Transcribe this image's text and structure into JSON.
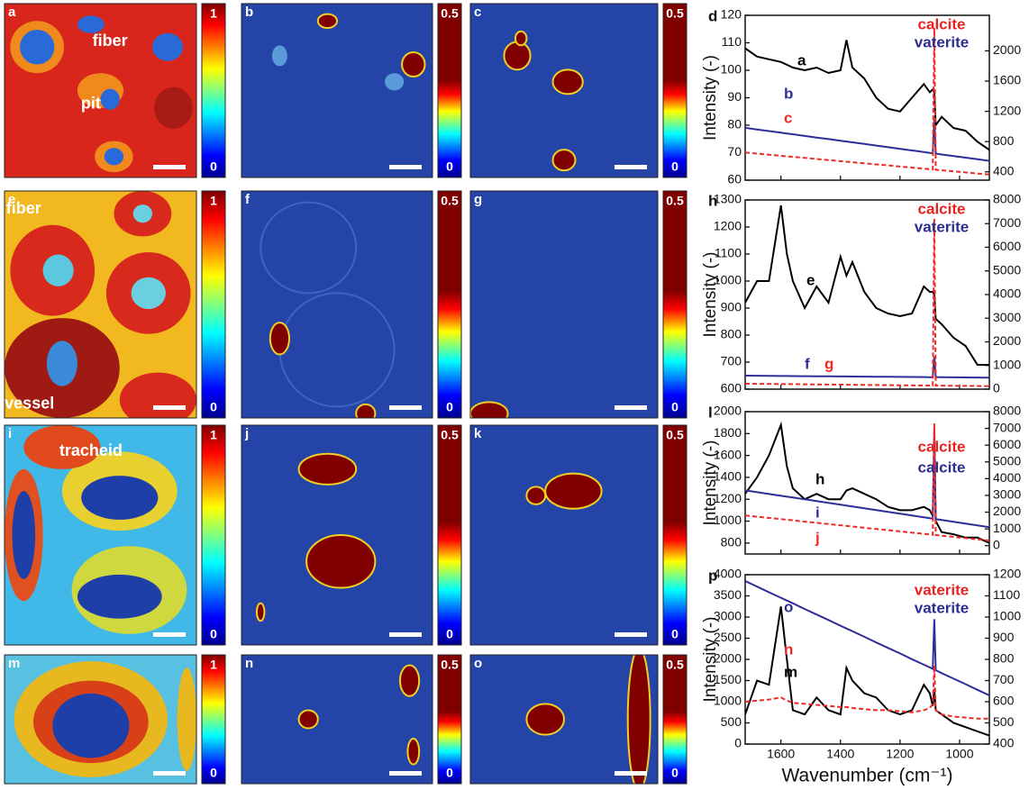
{
  "panels": [
    {
      "label": "a",
      "colorbar": {
        "max": 1,
        "min": 0
      },
      "annotations": [
        "fiber",
        "pit"
      ]
    },
    {
      "label": "b",
      "colorbar": {
        "max": 0.5,
        "min": 0
      },
      "annotations": []
    },
    {
      "label": "c",
      "colorbar": {
        "max": 0.5,
        "min": 0
      },
      "annotations": []
    },
    {
      "label": "e",
      "colorbar": {
        "max": 1,
        "min": 0
      },
      "annotations": [
        "fiber",
        "vessel"
      ]
    },
    {
      "label": "f",
      "colorbar": {
        "max": 0.5,
        "min": 0
      },
      "annotations": []
    },
    {
      "label": "g",
      "colorbar": {
        "max": 0.5,
        "min": 0
      },
      "annotations": []
    },
    {
      "label": "i",
      "colorbar": {
        "max": 1,
        "min": 0
      },
      "annotations": [
        "tracheid"
      ]
    },
    {
      "label": "j",
      "colorbar": {
        "max": 0.5,
        "min": 0
      },
      "annotations": []
    },
    {
      "label": "k",
      "colorbar": {
        "max": 0.5,
        "min": 0
      },
      "annotations": []
    },
    {
      "label": "m",
      "colorbar": {
        "max": 1,
        "min": 0
      },
      "annotations": []
    },
    {
      "label": "n",
      "colorbar": {
        "max": 0.5,
        "min": 0
      },
      "annotations": []
    },
    {
      "label": "o",
      "colorbar": {
        "max": 0.5,
        "min": 0
      },
      "annotations": []
    }
  ],
  "chart_data": [
    {
      "type": "line",
      "panel": "d",
      "ylabel": "Intensity (-)",
      "x": [
        1720,
        1680,
        1640,
        1600,
        1580,
        1560,
        1520,
        1480,
        1440,
        1400,
        1380,
        1360,
        1320,
        1280,
        1240,
        1200,
        1160,
        1120,
        1100,
        1090,
        1085,
        1080,
        1060,
        1020,
        980,
        940,
        900
      ],
      "xlim": [
        1720,
        900
      ],
      "xticks": [
        1600,
        1400,
        1200,
        1000
      ],
      "ylim": [
        60,
        120
      ],
      "yticks": [
        60,
        70,
        80,
        90,
        100,
        110,
        120
      ],
      "y2lim": [
        290,
        2470
      ],
      "y2ticks": [
        400,
        800,
        1200,
        1600,
        2000
      ],
      "annotations": [
        {
          "text": "calcite",
          "color": "#e8231f"
        },
        {
          "text": "vaterite",
          "color": "#2b2d92"
        }
      ],
      "series": [
        {
          "name": "a",
          "color": "#000000",
          "values": [
            108,
            105,
            104,
            103,
            102,
            101,
            100,
            101,
            99,
            100,
            111,
            101,
            97,
            90,
            86,
            85,
            90,
            95,
            92,
            93,
            92,
            80,
            83,
            79,
            78,
            74,
            71
          ]
        },
        {
          "name": "b",
          "color": "#2e2e9a",
          "axis": "y2",
          "values": [
            982,
            961,
            939,
            918,
            907,
            897,
            875,
            854,
            833,
            811,
            801,
            790,
            769,
            747,
            726,
            705,
            683,
            662,
            651,
            646,
            1090,
            641,
            630,
            609,
            588,
            566,
            545
          ]
        },
        {
          "name": "c",
          "color": "#ee2b24",
          "axis": "y2",
          "dashed": true,
          "values": [
            655,
            641,
            627,
            612,
            605,
            598,
            584,
            570,
            556,
            541,
            534,
            527,
            513,
            499,
            485,
            470,
            456,
            442,
            435,
            432,
            2290,
            428,
            421,
            407,
            392,
            378,
            364
          ]
        }
      ]
    },
    {
      "type": "line",
      "panel": "h",
      "ylabel": "Intensity (-)",
      "x": [
        1720,
        1680,
        1640,
        1600,
        1580,
        1560,
        1520,
        1480,
        1440,
        1400,
        1380,
        1360,
        1320,
        1280,
        1240,
        1200,
        1160,
        1120,
        1100,
        1090,
        1085,
        1080,
        1060,
        1020,
        980,
        940,
        900
      ],
      "xlim": [
        1720,
        900
      ],
      "xticks": [
        1600,
        1400,
        1200,
        1000
      ],
      "ylim": [
        600,
        1300
      ],
      "yticks": [
        600,
        700,
        800,
        900,
        1000,
        1100,
        1200,
        1300
      ],
      "y2lim": [
        0,
        8000
      ],
      "y2ticks": [
        0,
        1000,
        2000,
        3000,
        4000,
        5000,
        6000,
        7000,
        8000
      ],
      "annotations": [
        {
          "text": "calcite",
          "color": "#e8231f"
        },
        {
          "text": "vaterite",
          "color": "#2b2d92"
        }
      ],
      "series": [
        {
          "name": "e",
          "color": "#000000",
          "values": [
            920,
            1000,
            1000,
            1280,
            1100,
            1000,
            900,
            980,
            920,
            1090,
            1020,
            1070,
            960,
            900,
            880,
            870,
            880,
            980,
            960,
            960,
            950,
            860,
            840,
            790,
            760,
            690,
            690
          ]
        },
        {
          "name": "f",
          "color": "#2e2e9a",
          "axis": "y2",
          "values": [
            570,
            566,
            562,
            558,
            556,
            554,
            550,
            546,
            542,
            538,
            536,
            534,
            530,
            526,
            522,
            518,
            514,
            510,
            508,
            507,
            1370,
            506,
            504,
            500,
            496,
            492,
            488
          ]
        },
        {
          "name": "g",
          "color": "#ee2b24",
          "axis": "y2",
          "dashed": true,
          "values": [
            230,
            225,
            220,
            215,
            212,
            210,
            205,
            200,
            195,
            190,
            188,
            185,
            180,
            175,
            170,
            165,
            160,
            155,
            152,
            151,
            7200,
            150,
            147,
            142,
            137,
            132,
            127
          ]
        }
      ]
    },
    {
      "type": "line",
      "panel": "l",
      "ylabel": "Intensity (-)",
      "x": [
        1720,
        1680,
        1640,
        1600,
        1580,
        1560,
        1520,
        1480,
        1440,
        1400,
        1380,
        1360,
        1320,
        1280,
        1240,
        1200,
        1160,
        1120,
        1100,
        1090,
        1085,
        1080,
        1060,
        1020,
        980,
        940,
        900
      ],
      "xlim": [
        1720,
        900
      ],
      "xticks": [
        1600,
        1400,
        1200,
        1000
      ],
      "ylim": [
        700,
        2000
      ],
      "yticks": [
        800,
        1000,
        1200,
        1400,
        1600,
        1800,
        2000
      ],
      "y2lim": [
        -500,
        8000
      ],
      "y2ticks": [
        0,
        1000,
        2000,
        3000,
        4000,
        5000,
        6000,
        7000,
        8000
      ],
      "annotations": [
        {
          "text": "calcite",
          "color": "#e8231f"
        },
        {
          "text": "calcite",
          "color": "#2b2d92"
        }
      ],
      "series": [
        {
          "name": "h",
          "color": "#000000",
          "values": [
            1250,
            1400,
            1600,
            1880,
            1500,
            1300,
            1200,
            1250,
            1200,
            1200,
            1280,
            1300,
            1250,
            1200,
            1130,
            1100,
            1100,
            1130,
            1100,
            1050,
            1700,
            1000,
            900,
            880,
            850,
            850,
            800
          ]
        },
        {
          "name": "i",
          "color": "#2e2e9a",
          "axis": "y2",
          "values": [
            3300,
            3193,
            3085,
            2978,
            2924,
            2871,
            2763,
            2656,
            2549,
            2441,
            2388,
            2334,
            2227,
            2120,
            2012,
            1905,
            1798,
            1690,
            1637,
            1610,
            7000,
            1583,
            1529,
            1422,
            1315,
            1207,
            1100
          ]
        },
        {
          "name": "j",
          "color": "#ee2b24",
          "axis": "y2",
          "dashed": true,
          "values": [
            1800,
            1727,
            1654,
            1581,
            1544,
            1507,
            1434,
            1361,
            1288,
            1215,
            1178,
            1141,
            1068,
            995,
            922,
            849,
            776,
            703,
            666,
            648,
            7300,
            629,
            593,
            520,
            447,
            373,
            300
          ]
        }
      ]
    },
    {
      "type": "line",
      "panel": "p",
      "ylabel": "Intensity (-)",
      "xlabel": "Wavenumber (cm⁻¹)",
      "x": [
        1720,
        1680,
        1640,
        1600,
        1580,
        1560,
        1520,
        1480,
        1440,
        1400,
        1380,
        1360,
        1320,
        1280,
        1240,
        1200,
        1160,
        1120,
        1100,
        1090,
        1085,
        1080,
        1060,
        1020,
        980,
        940,
        900
      ],
      "xlim": [
        1720,
        900
      ],
      "xticks": [
        1600,
        1400,
        1200,
        1000
      ],
      "ylim": [
        0,
        4000
      ],
      "yticks": [
        0,
        500,
        1000,
        1500,
        2000,
        2500,
        3000,
        3500,
        4000
      ],
      "y2lim": [
        400,
        1200
      ],
      "y2ticks": [
        400,
        500,
        600,
        700,
        800,
        900,
        1000,
        1100,
        1200
      ],
      "annotations": [
        {
          "text": "vaterite",
          "color": "#e8231f"
        },
        {
          "text": "vaterite",
          "color": "#2b2d92"
        }
      ],
      "series": [
        {
          "name": "m",
          "color": "#000000",
          "values": [
            700,
            1500,
            1400,
            3250,
            2000,
            800,
            700,
            1100,
            800,
            700,
            1800,
            1500,
            1200,
            1100,
            800,
            700,
            800,
            1400,
            1200,
            900,
            1300,
            800,
            700,
            500,
            400,
            300,
            200
          ]
        },
        {
          "name": "o",
          "color": "#2e2e9a",
          "axis": "y2",
          "values": [
            1170,
            1144,
            1117,
            1091,
            1078,
            1065,
            1038,
            1012,
            986,
            959,
            946,
            933,
            907,
            880,
            854,
            828,
            801,
            775,
            762,
            755,
            990,
            749,
            735,
            709,
            683,
            656,
            630
          ]
        },
        {
          "name": "n",
          "color": "#ee2b24",
          "axis": "y2",
          "dashed": true,
          "values": [
            600,
            605,
            610,
            620,
            605,
            595,
            590,
            585,
            580,
            575,
            575,
            570,
            565,
            560,
            560,
            555,
            550,
            560,
            570,
            590,
            770,
            560,
            540,
            530,
            525,
            520,
            520
          ]
        }
      ]
    }
  ]
}
